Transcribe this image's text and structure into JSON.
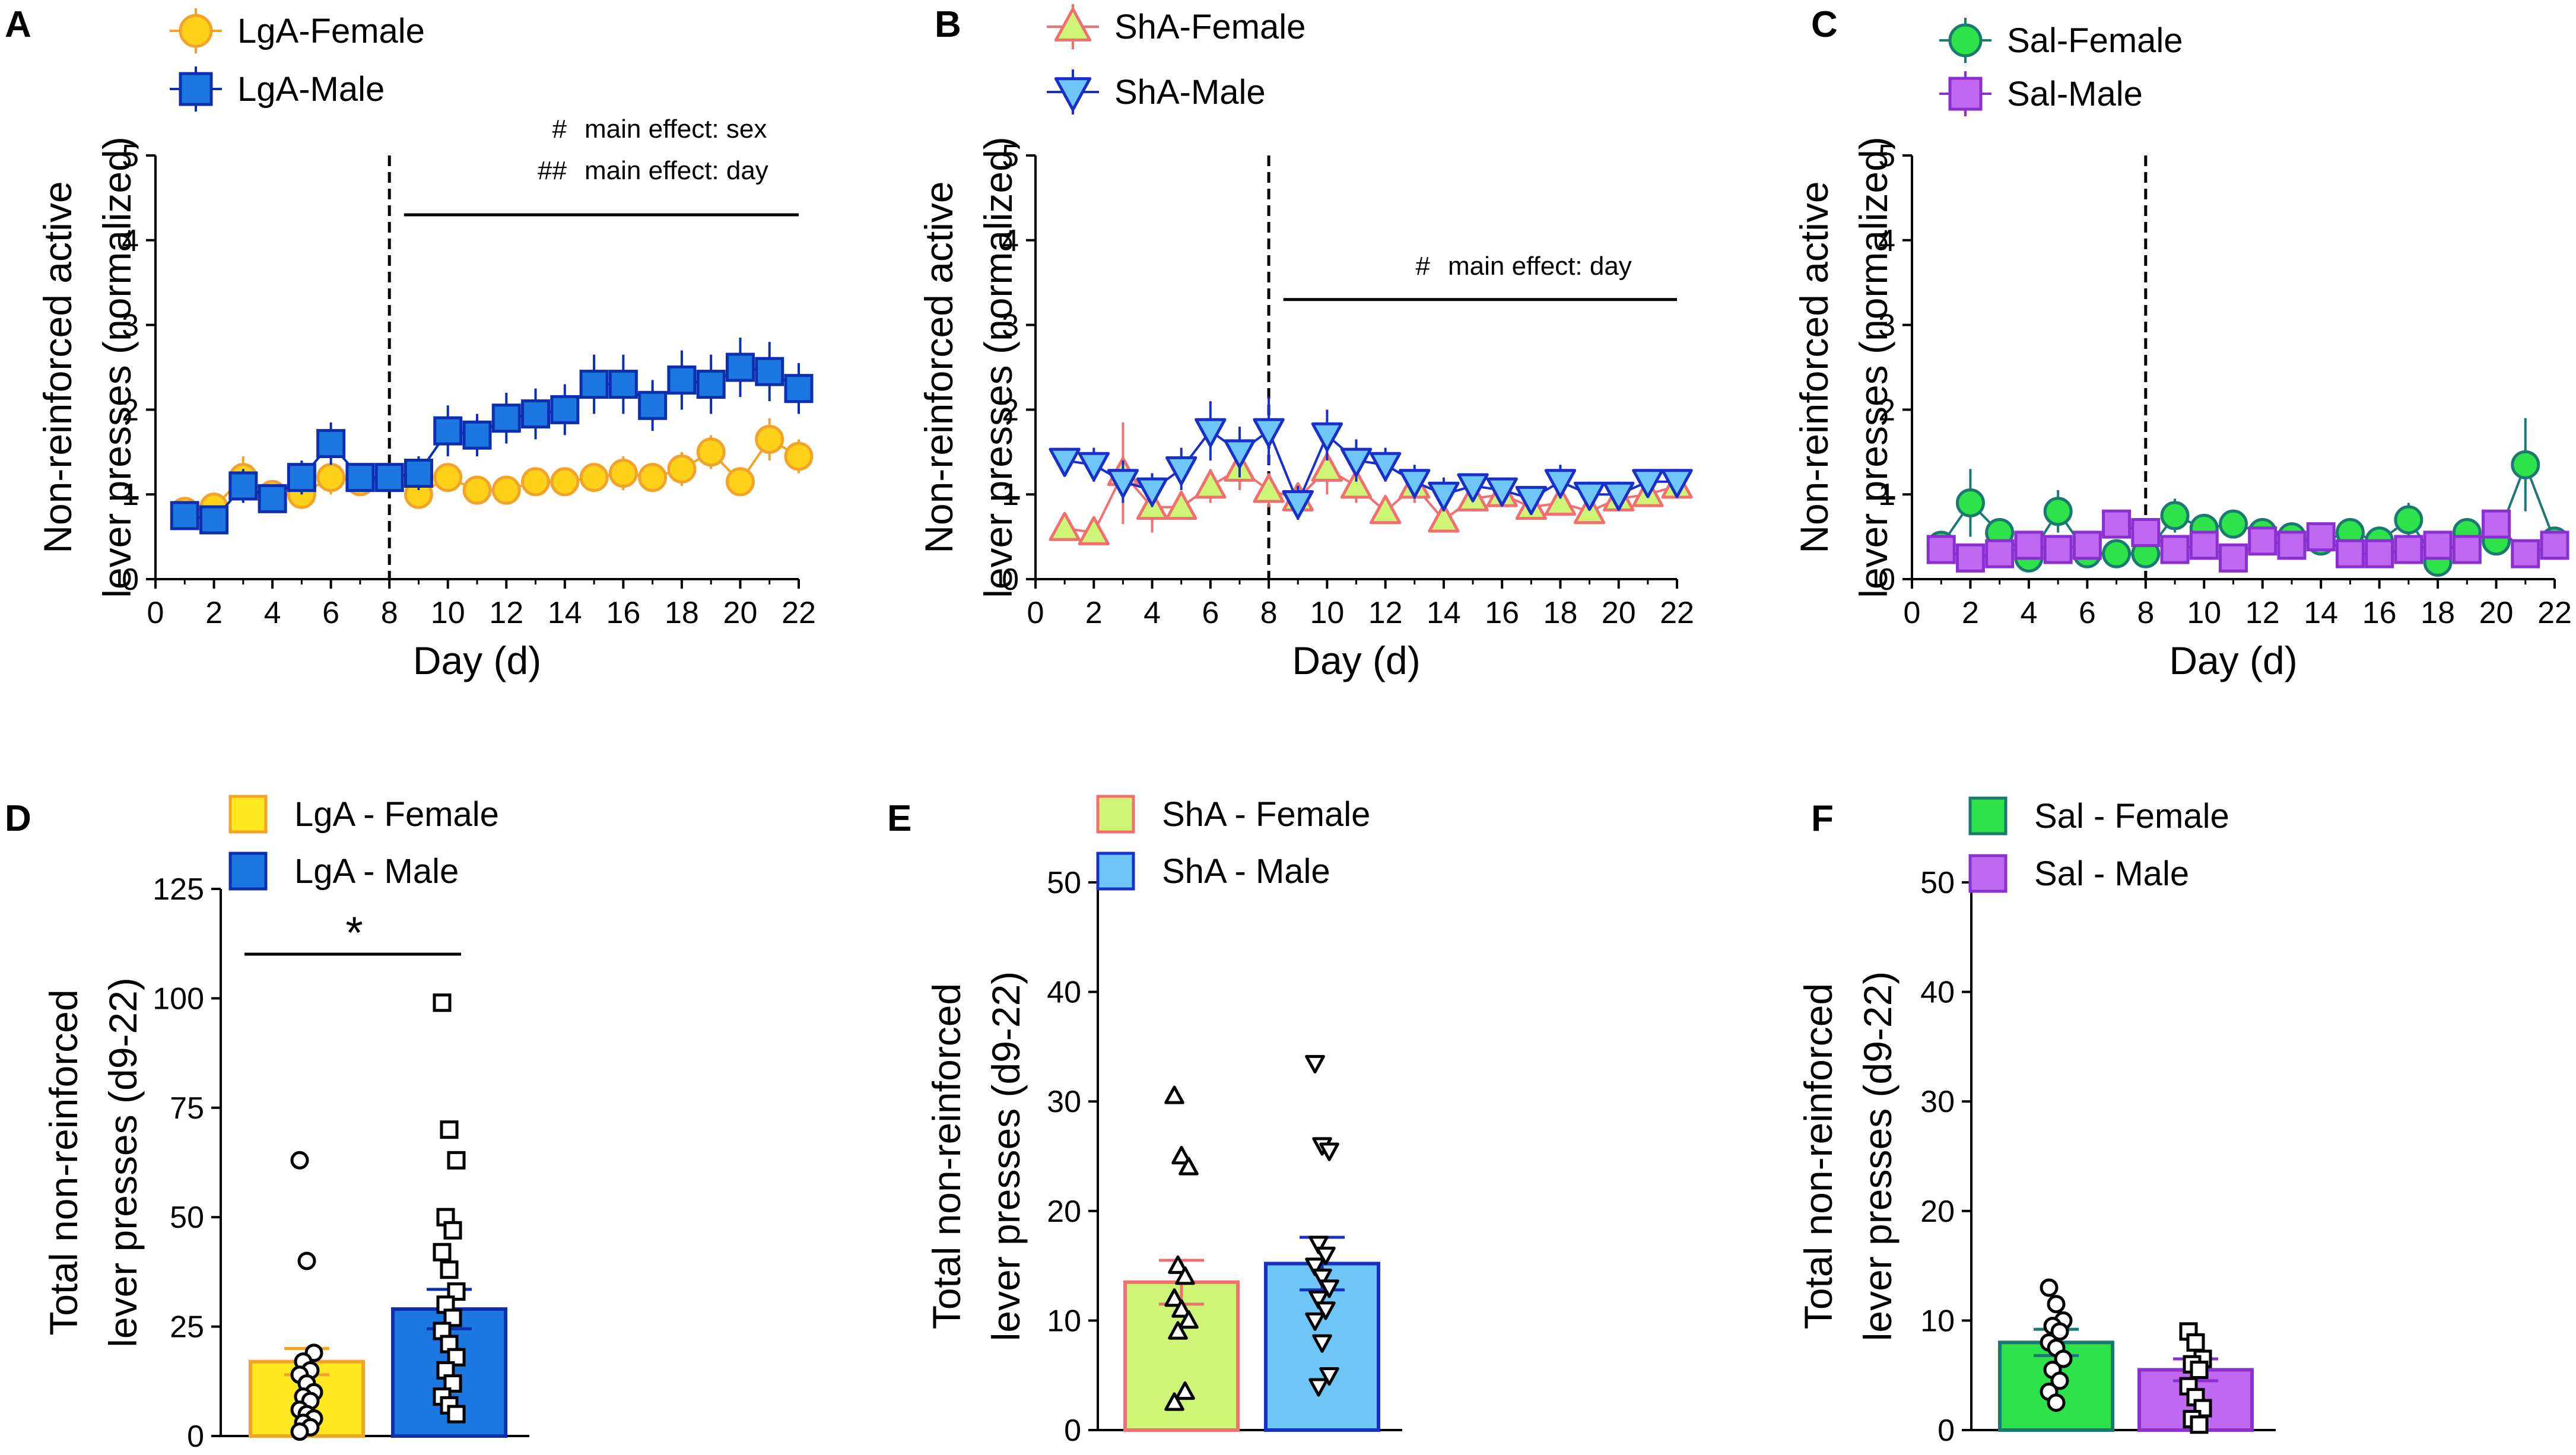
{
  "figure": {
    "panels_text": {
      "A": "A",
      "B": "B",
      "C": "C",
      "D": "D",
      "E": "E",
      "F": "F"
    }
  },
  "chart_data": [
    {
      "id": "A",
      "type": "line",
      "panel_label": "A",
      "xlabel": "Day (d)",
      "ylabel": [
        "Non-reinforced active",
        "lever presses (normalized)"
      ],
      "xlim": [
        0,
        22
      ],
      "ylim": [
        0,
        5
      ],
      "xticks": [
        0,
        2,
        4,
        6,
        8,
        10,
        12,
        14,
        16,
        18,
        20,
        22
      ],
      "yticks": [
        0,
        1,
        2,
        3,
        4,
        5
      ],
      "vline_x": 8,
      "bracket": {
        "x1": 8.5,
        "x2": 22,
        "y": 4.3
      },
      "annotations": [
        {
          "symbol": "#",
          "text": "main effect: sex"
        },
        {
          "symbol": "##",
          "text": "main effect: day"
        }
      ],
      "series": [
        {
          "name": "LgA-Female",
          "marker": "circle",
          "fill": "#ffd21a",
          "stroke": "#f4a32a",
          "x": [
            1,
            2,
            3,
            4,
            5,
            6,
            7,
            8,
            9,
            10,
            11,
            12,
            13,
            14,
            15,
            16,
            17,
            18,
            19,
            20,
            21,
            22
          ],
          "y": [
            0.8,
            0.85,
            1.2,
            1.0,
            1.0,
            1.2,
            1.15,
            1.2,
            1.0,
            1.2,
            1.05,
            1.05,
            1.15,
            1.15,
            1.2,
            1.25,
            1.2,
            1.3,
            1.5,
            1.15,
            1.65,
            1.45
          ],
          "err": [
            0.1,
            0.1,
            0.25,
            0.15,
            0.15,
            0.2,
            0.15,
            0.15,
            0.12,
            0.15,
            0.12,
            0.12,
            0.15,
            0.15,
            0.15,
            0.2,
            0.15,
            0.2,
            0.2,
            0.15,
            0.25,
            0.2
          ]
        },
        {
          "name": "LgA-Male",
          "marker": "square",
          "fill": "#1c78e0",
          "stroke": "#0b2fb0",
          "x": [
            1,
            2,
            3,
            4,
            5,
            6,
            7,
            8,
            9,
            10,
            11,
            12,
            13,
            14,
            15,
            16,
            17,
            18,
            19,
            20,
            21,
            22
          ],
          "y": [
            0.75,
            0.7,
            1.1,
            0.95,
            1.2,
            1.6,
            1.2,
            1.2,
            1.25,
            1.75,
            1.7,
            1.9,
            1.95,
            2.0,
            2.3,
            2.3,
            2.05,
            2.35,
            2.3,
            2.5,
            2.45,
            2.25
          ],
          "err": [
            0.12,
            0.12,
            0.2,
            0.15,
            0.2,
            0.25,
            0.15,
            0.15,
            0.2,
            0.3,
            0.25,
            0.3,
            0.3,
            0.3,
            0.35,
            0.35,
            0.3,
            0.35,
            0.35,
            0.35,
            0.35,
            0.3
          ]
        }
      ]
    },
    {
      "id": "B",
      "type": "line",
      "panel_label": "B",
      "xlabel": "Day (d)",
      "ylabel": [
        "Non-reinforced active",
        "lever presses (normalized)"
      ],
      "xlim": [
        0,
        22
      ],
      "ylim": [
        0,
        5
      ],
      "xticks": [
        0,
        2,
        4,
        6,
        8,
        10,
        12,
        14,
        16,
        18,
        20,
        22
      ],
      "yticks": [
        0,
        1,
        2,
        3,
        4,
        5
      ],
      "vline_x": 8,
      "bracket": {
        "x1": 8.5,
        "x2": 22,
        "y": 3.3
      },
      "annotations": [
        {
          "symbol": "#",
          "text": "main effect: day"
        }
      ],
      "series": [
        {
          "name": "ShA-Female",
          "marker": "triangle-up",
          "fill": "#cff576",
          "stroke": "#f07070",
          "x": [
            1,
            2,
            3,
            4,
            5,
            6,
            7,
            8,
            9,
            10,
            11,
            12,
            13,
            14,
            15,
            16,
            17,
            18,
            19,
            20,
            21,
            22
          ],
          "y": [
            0.6,
            0.55,
            1.25,
            0.85,
            0.85,
            1.1,
            1.3,
            1.05,
            0.95,
            1.3,
            1.1,
            0.8,
            1.1,
            0.7,
            0.95,
            1.0,
            0.85,
            0.9,
            0.8,
            0.95,
            1.0,
            1.1
          ],
          "err": [
            0.1,
            0.1,
            0.6,
            0.3,
            0.15,
            0.2,
            0.25,
            0.2,
            0.15,
            0.3,
            0.2,
            0.15,
            0.2,
            0.15,
            0.15,
            0.15,
            0.15,
            0.15,
            0.15,
            0.15,
            0.15,
            0.15
          ]
        },
        {
          "name": "ShA-Male",
          "marker": "triangle-down",
          "fill": "#6ec6f7",
          "stroke": "#1830c8",
          "x": [
            1,
            2,
            3,
            4,
            5,
            6,
            7,
            8,
            9,
            10,
            11,
            12,
            13,
            14,
            15,
            16,
            17,
            18,
            19,
            20,
            21,
            22
          ],
          "y": [
            1.4,
            1.35,
            1.15,
            1.05,
            1.3,
            1.75,
            1.5,
            1.75,
            0.9,
            1.7,
            1.4,
            1.35,
            1.15,
            1.0,
            1.1,
            1.05,
            0.95,
            1.15,
            1.0,
            1.0,
            1.15,
            1.15
          ],
          "err": [
            0.15,
            0.2,
            0.25,
            0.2,
            0.25,
            0.35,
            0.3,
            0.4,
            0.2,
            0.3,
            0.25,
            0.2,
            0.2,
            0.2,
            0.15,
            0.15,
            0.15,
            0.2,
            0.15,
            0.15,
            0.15,
            0.15
          ]
        }
      ]
    },
    {
      "id": "C",
      "type": "line",
      "panel_label": "C",
      "xlabel": "Day (d)",
      "ylabel": [
        "Non-reinforced active",
        "lever presses (normalized)"
      ],
      "xlim": [
        0,
        22
      ],
      "ylim": [
        0,
        5
      ],
      "xticks": [
        0,
        2,
        4,
        6,
        8,
        10,
        12,
        14,
        16,
        18,
        20,
        22
      ],
      "yticks": [
        0,
        1,
        2,
        3,
        4,
        5
      ],
      "vline_x": 8,
      "series": [
        {
          "name": "Sal-Female",
          "marker": "circle",
          "fill": "#2ee24a",
          "stroke": "#1a7a70",
          "x": [
            1,
            2,
            3,
            4,
            5,
            6,
            7,
            8,
            9,
            10,
            11,
            12,
            13,
            14,
            15,
            16,
            17,
            18,
            19,
            20,
            21,
            22
          ],
          "y": [
            0.4,
            0.9,
            0.55,
            0.25,
            0.8,
            0.3,
            0.3,
            0.3,
            0.75,
            0.6,
            0.65,
            0.55,
            0.5,
            0.45,
            0.55,
            0.45,
            0.7,
            0.2,
            0.55,
            0.45,
            1.35,
            0.45
          ],
          "err": [
            0.1,
            0.4,
            0.15,
            0.1,
            0.25,
            0.1,
            0.1,
            0.1,
            0.2,
            0.15,
            0.15,
            0.15,
            0.15,
            0.1,
            0.15,
            0.1,
            0.2,
            0.1,
            0.15,
            0.15,
            0.55,
            0.1
          ]
        },
        {
          "name": "Sal-Male",
          "marker": "square",
          "fill": "#c069f0",
          "stroke": "#8a2fd0",
          "x": [
            1,
            2,
            3,
            4,
            5,
            6,
            7,
            8,
            9,
            10,
            11,
            12,
            13,
            14,
            15,
            16,
            17,
            18,
            19,
            20,
            21,
            22
          ],
          "y": [
            0.35,
            0.25,
            0.3,
            0.4,
            0.35,
            0.4,
            0.65,
            0.55,
            0.35,
            0.4,
            0.25,
            0.45,
            0.4,
            0.5,
            0.3,
            0.3,
            0.35,
            0.4,
            0.35,
            0.65,
            0.3,
            0.4
          ],
          "err": [
            0.1,
            0.15,
            0.1,
            0.1,
            0.1,
            0.15,
            0.15,
            0.15,
            0.1,
            0.1,
            0.1,
            0.15,
            0.1,
            0.15,
            0.1,
            0.1,
            0.1,
            0.1,
            0.1,
            0.15,
            0.1,
            0.1
          ]
        }
      ]
    },
    {
      "id": "D",
      "type": "bar",
      "panel_label": "D",
      "ylabel": [
        "Total non-reinforced",
        "lever presses (d9-22)"
      ],
      "ylim": [
        0,
        125
      ],
      "yticks": [
        0,
        25,
        50,
        75,
        100,
        125
      ],
      "significance": "*",
      "bars": [
        {
          "name": "LgA - Female",
          "value": 17,
          "sem": 3,
          "fill": "#ffe81f",
          "stroke": "#f4a32a",
          "err_color": "#f4a32a",
          "point_marker": "circle",
          "points": [
            63,
            40,
            19,
            17,
            15,
            14,
            12,
            10,
            9,
            8,
            6,
            5,
            4,
            3,
            2,
            1
          ]
        },
        {
          "name": "LgA - Male",
          "value": 29,
          "sem": 4.5,
          "fill": "#1c78e0",
          "stroke": "#0b2fb0",
          "err_color": "#0b2fb0",
          "point_marker": "square",
          "points": [
            99,
            70,
            63,
            50,
            47,
            42,
            38,
            33,
            30,
            27,
            24,
            21,
            18,
            15,
            12,
            9,
            7,
            5
          ]
        }
      ]
    },
    {
      "id": "E",
      "type": "bar",
      "panel_label": "E",
      "ylabel": [
        "Total non-reinforced",
        "lever presses (d9-22)"
      ],
      "ylim": [
        0,
        50
      ],
      "yticks": [
        0,
        10,
        20,
        30,
        40,
        50
      ],
      "bars": [
        {
          "name": "ShA - Female",
          "value": 13.5,
          "sem": 2,
          "fill": "#cff576",
          "stroke": "#f07070",
          "err_color": "#f07070",
          "point_marker": "triangle-up",
          "points": [
            30.5,
            25,
            24,
            15,
            14,
            12,
            11,
            10,
            9,
            3.5,
            2.5
          ]
        },
        {
          "name": "ShA - Male",
          "value": 15.2,
          "sem": 2.4,
          "fill": "#6ec6f7",
          "stroke": "#1830c8",
          "err_color": "#1830c8",
          "point_marker": "triangle-down",
          "points": [
            33.5,
            26,
            25.5,
            17,
            16,
            15,
            14,
            13,
            12,
            11,
            10,
            8,
            5,
            4
          ]
        }
      ]
    },
    {
      "id": "F",
      "type": "bar",
      "panel_label": "F",
      "ylabel": [
        "Total non-reinforced",
        "lever presses (d9-22)"
      ],
      "ylim": [
        0,
        50
      ],
      "yticks": [
        0,
        10,
        20,
        30,
        40,
        50
      ],
      "bars": [
        {
          "name": "Sal - Female",
          "value": 8,
          "sem": 1.2,
          "fill": "#2ee24a",
          "stroke": "#1a7a70",
          "err_color": "#1a7a70",
          "point_marker": "circle",
          "points": [
            13,
            11.5,
            10,
            9.5,
            9,
            8,
            7.5,
            6.5,
            5.5,
            4.5,
            3.5,
            2.5
          ]
        },
        {
          "name": "Sal - Male",
          "value": 5.5,
          "sem": 1,
          "fill": "#c069f0",
          "stroke": "#8a2fd0",
          "err_color": "#8a2fd0",
          "point_marker": "square",
          "points": [
            9,
            8,
            6.5,
            6,
            5.5,
            4,
            3,
            2,
            1,
            0.5
          ]
        }
      ]
    }
  ]
}
